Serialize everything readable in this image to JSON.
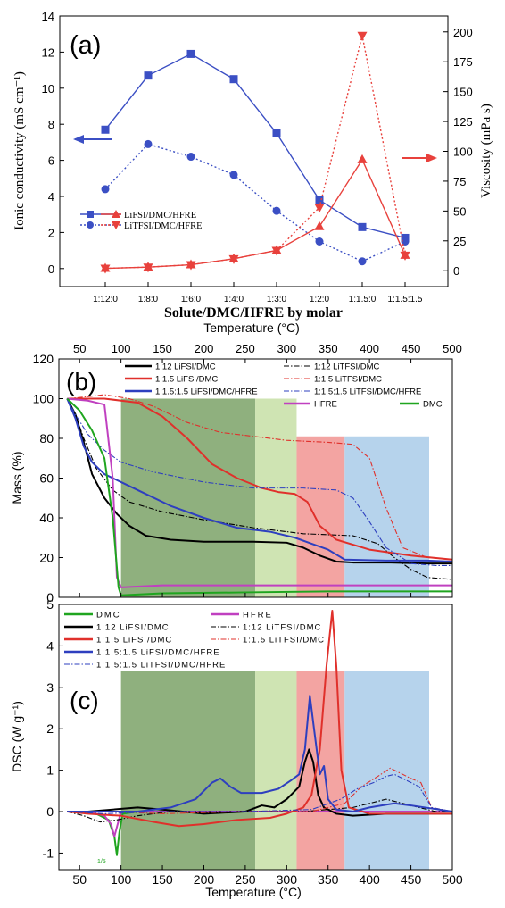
{
  "chart_data": [
    {
      "panel_label": "(a)",
      "type": "line",
      "xlabel": "Solute/DMC/HFRE by molar",
      "ylabel": "Ionic conductivity (mS cm⁻¹)",
      "ylabel2": "Viscosity (mPa s)",
      "categories": [
        "1:12:0",
        "1:8:0",
        "1:6:0",
        "1:4:0",
        "1:3:0",
        "1:2:0",
        "1:1.5:0",
        "1:1.5:1.5"
      ],
      "ylim": [
        -1,
        14
      ],
      "yticks": [
        0,
        2,
        4,
        6,
        8,
        10,
        12,
        14
      ],
      "y2lim": [
        -13.3,
        213.3
      ],
      "y2ticks": [
        0,
        25,
        50,
        75,
        100,
        125,
        150,
        175,
        200
      ],
      "legend": [
        "LiFSI/DMC/HFRE",
        "LiTFSI/DMC/HFRE"
      ],
      "series": [
        {
          "name": "LiFSI/DMC/HFRE",
          "axis": "left",
          "style": "solid",
          "marker": "square",
          "color": "#3b4fc4",
          "values": [
            7.7,
            10.7,
            11.9,
            10.5,
            7.5,
            3.8,
            2.3,
            1.7
          ]
        },
        {
          "name": "LiTFSI/DMC/HFRE",
          "axis": "left",
          "style": "dotted",
          "marker": "circle",
          "color": "#3b4fc4",
          "values": [
            4.4,
            6.9,
            6.2,
            5.2,
            3.2,
            1.5,
            0.4,
            1.5
          ]
        },
        {
          "axis": "right",
          "style": "solid",
          "marker": "triangle-up",
          "color": "#e8413c",
          "values": [
            2,
            3,
            5,
            10,
            17,
            37,
            93,
            13
          ]
        },
        {
          "axis": "right",
          "style": "dotted",
          "marker": "triangle-down",
          "color": "#e8413c",
          "values": [
            2,
            3,
            5,
            10,
            17,
            53,
            197,
            13
          ]
        }
      ]
    },
    {
      "panel_label": "(b)",
      "type": "line",
      "xlabel_top": "Temperature (°C)",
      "ylabel": "Mass (%)",
      "xlim": [
        25,
        500
      ],
      "xticks": [
        50,
        100,
        150,
        200,
        250,
        300,
        350,
        400,
        450,
        500
      ],
      "ylim": [
        0,
        120
      ],
      "yticks": [
        0,
        20,
        40,
        60,
        80,
        100,
        120
      ],
      "regions": [
        {
          "x": [
            100,
            262
          ],
          "color": "#8fb07e"
        },
        {
          "x": [
            262,
            312
          ],
          "color": "#cfe4b3"
        },
        {
          "x": [
            312,
            370
          ],
          "color": "#f3a4a2"
        },
        {
          "x": [
            370,
            472
          ],
          "color": "#b6d3ec"
        }
      ],
      "legend": [
        "1:12 LiFSI/DMC",
        "1:12 LiTFSI/DMC",
        "1:1.5 LiFSI/DMC",
        "1:1.5 LiTFSI/DMC",
        "1:1.5:1.5 LiFSI/DMC/HFRE",
        "1:1.5:1.5 LiTFSI/DMC/HFRE",
        "HFRE",
        "DMC"
      ],
      "series": [
        {
          "name": "1:12 LiFSI/DMC",
          "style": "solid",
          "color": "#000000",
          "x": [
            35,
            45,
            55,
            65,
            80,
            95,
            110,
            130,
            160,
            200,
            260,
            300,
            320,
            340,
            360,
            380,
            420,
            470,
            500
          ],
          "y": [
            100,
            92,
            78,
            62,
            50,
            42,
            36,
            31,
            29,
            28,
            28,
            27.5,
            25,
            21,
            18,
            17.5,
            17.5,
            17,
            17
          ]
        },
        {
          "name": "1:12 LiTFSI/DMC",
          "style": "dashdot",
          "color": "#000000",
          "x": [
            35,
            45,
            55,
            70,
            90,
            110,
            150,
            200,
            260,
            320,
            380,
            410,
            430,
            450,
            470,
            500
          ],
          "y": [
            100,
            92,
            80,
            65,
            54,
            48,
            43,
            39,
            35,
            32,
            31,
            27,
            20,
            14,
            10,
            9
          ]
        },
        {
          "name": "1:1.5 LiFSI/DMC",
          "style": "solid",
          "color": "#e0302b",
          "x": [
            35,
            50,
            80,
            120,
            150,
            180,
            210,
            240,
            270,
            290,
            310,
            325,
            340,
            360,
            400,
            450,
            500
          ],
          "y": [
            100,
            100,
            100,
            98,
            91,
            80,
            67,
            60,
            55,
            53,
            52,
            48,
            36,
            29,
            24,
            21,
            19
          ]
        },
        {
          "name": "1:1.5 LiTFSI/DMC",
          "style": "dashdot",
          "color": "#e0302b",
          "x": [
            35,
            60,
            80,
            110,
            140,
            180,
            220,
            260,
            300,
            350,
            380,
            400,
            420,
            440,
            470,
            500
          ],
          "y": [
            100,
            101,
            102,
            100,
            96,
            88,
            83,
            81,
            79,
            78,
            77,
            70,
            45,
            25,
            20,
            19
          ]
        },
        {
          "name": "1:1.5:1.5 LiFSI/DMC/HFRE",
          "style": "solid",
          "color": "#2e3fbf",
          "x": [
            35,
            45,
            55,
            65,
            80,
            100,
            130,
            160,
            200,
            240,
            280,
            310,
            330,
            350,
            370,
            420,
            470,
            500
          ],
          "y": [
            100,
            90,
            76,
            68,
            62,
            58,
            52,
            46,
            40,
            35,
            33,
            30,
            27,
            24,
            19,
            18.5,
            18.5,
            18
          ]
        },
        {
          "name": "1:1.5:1.5 LiTFSI/DMC/HFRE",
          "style": "dashdot",
          "color": "#2e3fbf",
          "x": [
            35,
            45,
            60,
            80,
            100,
            140,
            200,
            260,
            320,
            360,
            380,
            400,
            420,
            450,
            480,
            500
          ],
          "y": [
            100,
            92,
            82,
            74,
            68,
            63,
            58,
            55,
            55,
            54,
            50,
            38,
            25,
            17,
            16,
            16
          ]
        },
        {
          "name": "HFRE",
          "style": "solid",
          "color": "#c040c0",
          "x": [
            35,
            60,
            80,
            90,
            95,
            100,
            150,
            250,
            350,
            450,
            500
          ],
          "y": [
            100,
            99,
            97,
            60,
            10,
            5,
            6,
            6,
            6,
            6,
            6
          ]
        },
        {
          "name": "DMC",
          "style": "solid",
          "color": "#1fa51f",
          "x": [
            35,
            50,
            65,
            80,
            90,
            97,
            100,
            150,
            250,
            350,
            450,
            500
          ],
          "y": [
            100,
            94,
            84,
            70,
            40,
            5,
            1,
            2,
            2.5,
            3,
            3,
            3
          ]
        }
      ]
    },
    {
      "panel_label": "(c)",
      "type": "line",
      "xlabel": "Temperature (°C)",
      "ylabel": "DSC (W g⁻¹)",
      "xlim": [
        25,
        500
      ],
      "xticks": [
        50,
        100,
        150,
        200,
        250,
        300,
        350,
        400,
        450,
        500
      ],
      "ylim": [
        -1.4,
        5
      ],
      "yticks": [
        -1,
        0,
        1,
        2,
        3,
        4,
        5
      ],
      "regions": [
        {
          "x": [
            100,
            262
          ],
          "color": "#8fb07e"
        },
        {
          "x": [
            262,
            312
          ],
          "color": "#cfe4b3"
        },
        {
          "x": [
            312,
            370
          ],
          "color": "#f3a4a2"
        },
        {
          "x": [
            370,
            472
          ],
          "color": "#b6d3ec"
        }
      ],
      "legend": [
        "DMC",
        "HFRE",
        "1:12 LiFSI/DMC",
        "1:12 LiTFSI/DMC",
        "1:1.5 LiFSI/DMC",
        "1:1.5 LiTFSI/DMC",
        "1:1.5:1.5 LiFSI/DMC/HFRE",
        "1:1.5:1.5 LiTFSI/DMC/HFRE"
      ],
      "series": [
        {
          "name": "DMC",
          "style": "solid",
          "color": "#1fa51f",
          "x": [
            35,
            50,
            70,
            85,
            92,
            95,
            98,
            102,
            120,
            200,
            300,
            400,
            500
          ],
          "y": [
            0,
            0,
            -0.05,
            -0.2,
            -0.6,
            -1.05,
            -0.5,
            -0.05,
            0,
            0,
            0,
            0,
            0
          ]
        },
        {
          "name": "HFRE",
          "style": "solid",
          "color": "#c040c0",
          "x": [
            35,
            60,
            80,
            88,
            92,
            96,
            100,
            150,
            300,
            500
          ],
          "y": [
            0,
            0,
            -0.1,
            -0.3,
            -0.6,
            -0.3,
            0,
            0,
            0,
            0
          ]
        },
        {
          "name": "1:12 LiFSI/DMC",
          "style": "solid",
          "color": "#000000",
          "x": [
            35,
            60,
            90,
            120,
            150,
            200,
            250,
            270,
            285,
            300,
            315,
            322,
            327,
            332,
            338,
            345,
            360,
            380,
            420,
            500
          ],
          "y": [
            0,
            0,
            0.05,
            0.1,
            0.05,
            -0.05,
            0,
            0.15,
            0.1,
            0.3,
            0.6,
            1.2,
            1.5,
            1.2,
            0.4,
            0.1,
            -0.05,
            -0.1,
            -0.05,
            -0.05
          ]
        },
        {
          "name": "1:12 LiTFSI/DMC",
          "style": "dashdot",
          "color": "#000000",
          "x": [
            35,
            55,
            75,
            95,
            120,
            160,
            200,
            260,
            320,
            380,
            420,
            440,
            460,
            480,
            500
          ],
          "y": [
            0,
            -0.1,
            -0.25,
            -0.2,
            -0.1,
            0,
            0,
            0,
            0,
            0.1,
            0.3,
            0.2,
            0.1,
            0,
            0
          ]
        },
        {
          "name": "1:1.5 LiFSI/DMC",
          "style": "solid",
          "color": "#e0302b",
          "x": [
            35,
            60,
            100,
            140,
            170,
            200,
            240,
            280,
            300,
            320,
            330,
            340,
            348,
            355,
            360,
            366,
            375,
            400,
            450,
            500
          ],
          "y": [
            0,
            -0.05,
            -0.1,
            -0.25,
            -0.35,
            -0.3,
            -0.2,
            -0.15,
            -0.05,
            0.1,
            0.4,
            1.5,
            3.5,
            4.85,
            3.5,
            1.0,
            0.1,
            -0.05,
            -0.05,
            -0.05
          ]
        },
        {
          "name": "1:1.5 LiTFSI/DMC",
          "style": "dashdot",
          "color": "#e0302b",
          "x": [
            35,
            80,
            150,
            250,
            330,
            370,
            390,
            410,
            425,
            435,
            450,
            462,
            475,
            500
          ],
          "y": [
            0,
            0,
            -0.05,
            0,
            0,
            0.2,
            0.6,
            0.85,
            1.05,
            0.95,
            0.8,
            0.7,
            0.1,
            0
          ]
        },
        {
          "name": "1:1.5:1.5 LiFSI/DMC/HFRE",
          "style": "solid",
          "color": "#2e3fbf",
          "x": [
            35,
            80,
            120,
            160,
            190,
            210,
            220,
            232,
            245,
            270,
            290,
            305,
            315,
            322,
            328,
            333,
            340,
            345,
            350,
            360,
            380,
            400,
            430,
            450,
            500
          ],
          "y": [
            0,
            0,
            0,
            0.1,
            0.3,
            0.7,
            0.8,
            0.6,
            0.45,
            0.45,
            0.55,
            0.75,
            0.9,
            1.5,
            2.8,
            2.0,
            0.9,
            1.1,
            0.3,
            0.05,
            0,
            0.1,
            0.2,
            0.15,
            0
          ]
        },
        {
          "name": "1:1.5:1.5 LiTFSI/DMC/HFRE",
          "style": "dashdot",
          "color": "#2e3fbf",
          "x": [
            35,
            80,
            150,
            250,
            330,
            365,
            385,
            405,
            420,
            430,
            445,
            460,
            475,
            500
          ],
          "y": [
            0,
            -0.05,
            0,
            0,
            0.05,
            0.3,
            0.55,
            0.7,
            0.85,
            0.9,
            0.75,
            0.6,
            0.1,
            0
          ]
        }
      ],
      "annotation": "1/5"
    }
  ]
}
